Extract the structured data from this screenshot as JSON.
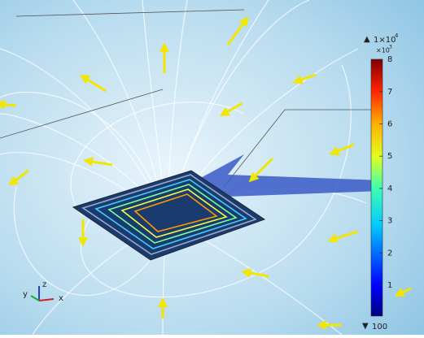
{
  "colorbar": {
    "max_marker": "▲",
    "max_label": "1×10",
    "max_exponent": "4",
    "multiplier": "×10",
    "multiplier_exponent": "3",
    "ticks": [
      1,
      2,
      3,
      4,
      5,
      6,
      7,
      8
    ],
    "min_marker": "▼",
    "min_label": "100"
  },
  "axes_triad": {
    "x": "x",
    "y": "y",
    "z": "z"
  }
}
